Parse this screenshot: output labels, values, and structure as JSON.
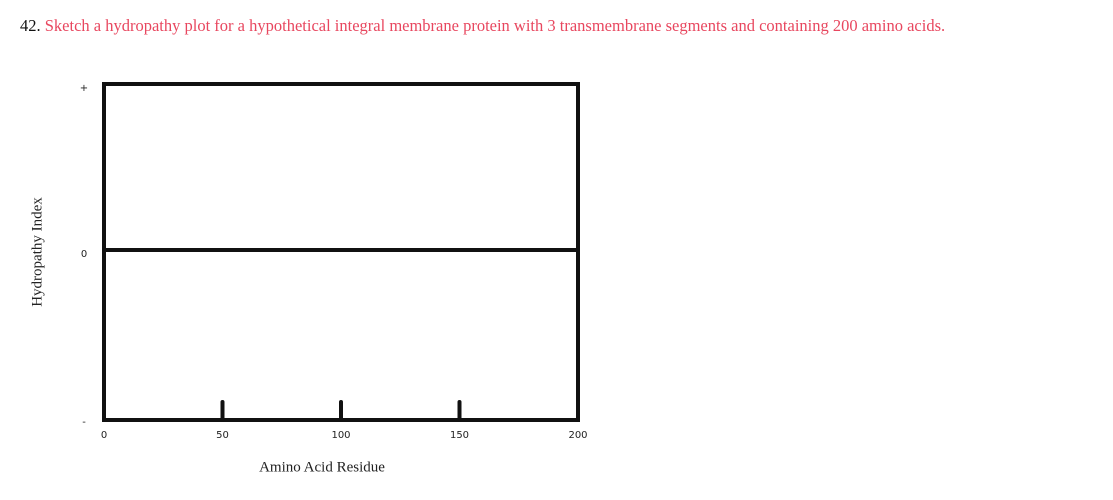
{
  "question": {
    "number": "42.",
    "text": "Sketch a hydropathy plot for a hypothetical integral membrane protein with 3 transmembrane segments and containing 200 amino acids."
  },
  "plot": {
    "y_label": "Hydropathy Index",
    "x_label": "Amino Acid Residue",
    "y_tick_labels": [
      "+",
      "0",
      "-"
    ],
    "xlim": [
      0,
      200
    ],
    "xticks": [
      0,
      50,
      100,
      150,
      200
    ]
  }
}
